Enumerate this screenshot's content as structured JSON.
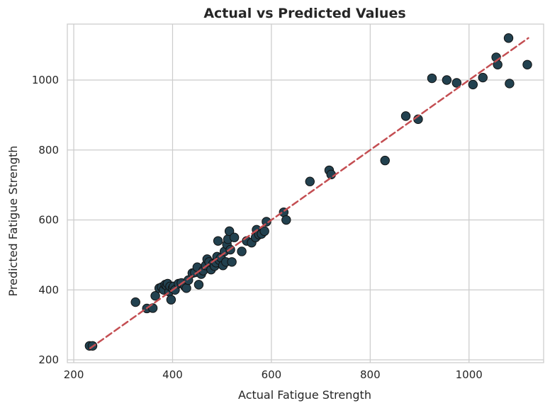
{
  "chart_data": {
    "type": "scatter",
    "title": "Actual vs Predicted Values",
    "xlabel": "Actual Fatigue Strength",
    "ylabel": "Predicted Fatigue Strength",
    "xlim": [
      187,
      1151
    ],
    "ylim": [
      192,
      1160
    ],
    "xticks": [
      200,
      400,
      600,
      800,
      1000
    ],
    "yticks": [
      200,
      400,
      600,
      800,
      1000
    ],
    "grid": true,
    "marker_color": "#22414f",
    "marker_edge": "#111111",
    "line_color": "#c44e52",
    "reference_line": {
      "x": [
        233,
        1120
      ],
      "y": [
        233,
        1120
      ],
      "style": "dashed"
    },
    "points": [
      [
        232,
        240
      ],
      [
        238,
        240
      ],
      [
        325,
        365
      ],
      [
        348,
        347
      ],
      [
        360,
        348
      ],
      [
        365,
        383
      ],
      [
        373,
        405
      ],
      [
        378,
        408
      ],
      [
        382,
        400
      ],
      [
        385,
        415
      ],
      [
        388,
        412
      ],
      [
        390,
        418
      ],
      [
        393,
        395
      ],
      [
        395,
        410
      ],
      [
        397,
        372
      ],
      [
        400,
        405
      ],
      [
        402,
        410
      ],
      [
        405,
        400
      ],
      [
        412,
        418
      ],
      [
        418,
        420
      ],
      [
        425,
        410
      ],
      [
        428,
        405
      ],
      [
        432,
        428
      ],
      [
        440,
        448
      ],
      [
        445,
        450
      ],
      [
        450,
        465
      ],
      [
        453,
        415
      ],
      [
        458,
        445
      ],
      [
        462,
        455
      ],
      [
        467,
        470
      ],
      [
        470,
        488
      ],
      [
        474,
        480
      ],
      [
        478,
        458
      ],
      [
        482,
        475
      ],
      [
        485,
        468
      ],
      [
        488,
        478
      ],
      [
        490,
        495
      ],
      [
        492,
        540
      ],
      [
        495,
        485
      ],
      [
        498,
        492
      ],
      [
        502,
        470
      ],
      [
        505,
        510
      ],
      [
        508,
        480
      ],
      [
        510,
        530
      ],
      [
        512,
        545
      ],
      [
        515,
        568
      ],
      [
        517,
        515
      ],
      [
        520,
        480
      ],
      [
        525,
        550
      ],
      [
        540,
        510
      ],
      [
        550,
        540
      ],
      [
        560,
        535
      ],
      [
        568,
        550
      ],
      [
        570,
        572
      ],
      [
        575,
        558
      ],
      [
        580,
        560
      ],
      [
        586,
        568
      ],
      [
        590,
        595
      ],
      [
        625,
        622
      ],
      [
        630,
        600
      ],
      [
        678,
        710
      ],
      [
        717,
        742
      ],
      [
        721,
        730
      ],
      [
        830,
        770
      ],
      [
        872,
        897
      ],
      [
        897,
        888
      ],
      [
        925,
        1005
      ],
      [
        955,
        1000
      ],
      [
        975,
        992
      ],
      [
        1008,
        987
      ],
      [
        1028,
        1007
      ],
      [
        1055,
        1065
      ],
      [
        1058,
        1044
      ],
      [
        1080,
        1120
      ],
      [
        1082,
        990
      ],
      [
        1118,
        1044
      ]
    ]
  }
}
